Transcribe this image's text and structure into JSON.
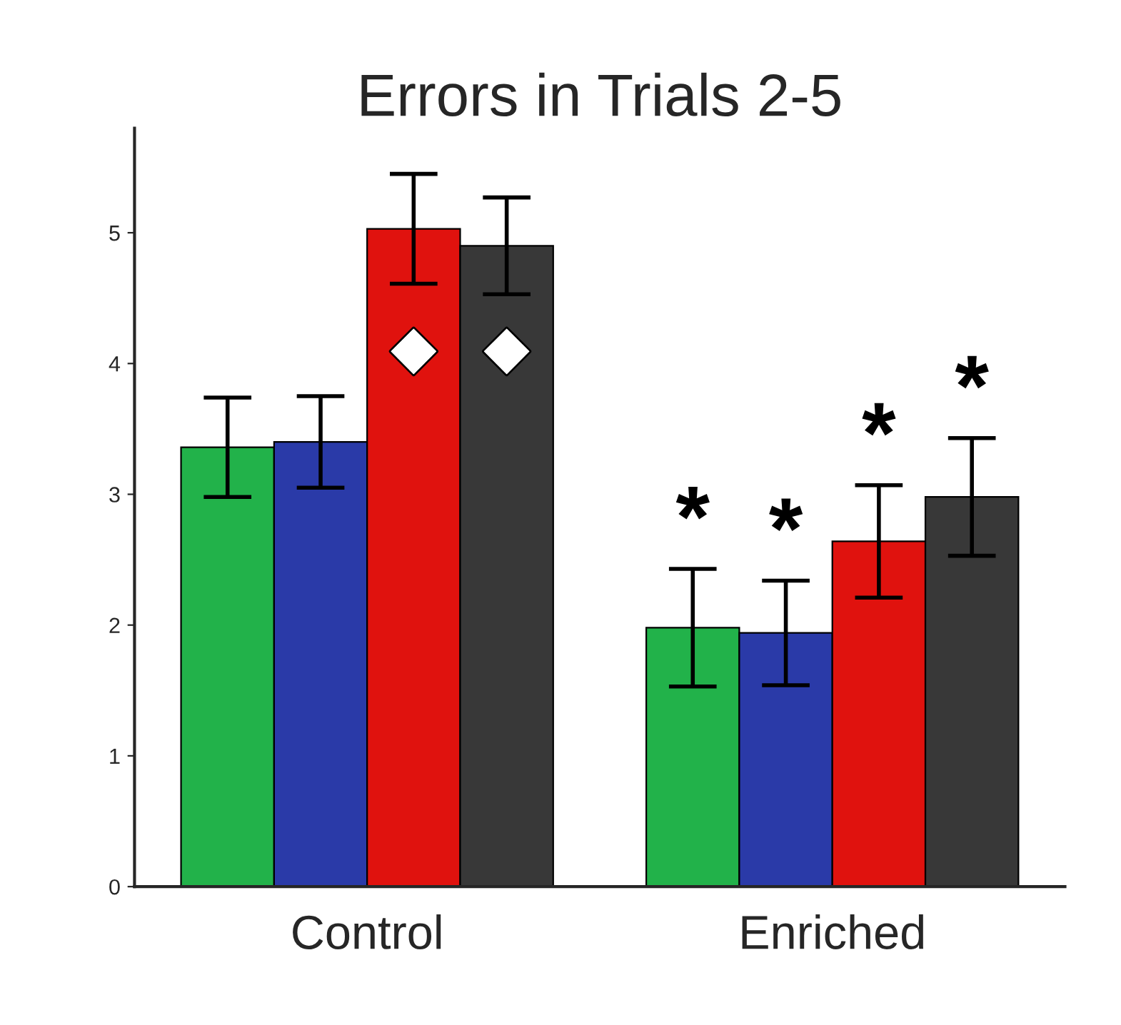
{
  "chart_data": {
    "type": "bar",
    "title": "Errors in Trials 2-5",
    "categories": [
      "Control",
      "Enriched"
    ],
    "series": [
      {
        "color": "#22b24a",
        "values": [
          3.36,
          1.98
        ],
        "errors": [
          0.38,
          0.45
        ]
      },
      {
        "color": "#2a3aa8",
        "values": [
          3.4,
          1.94
        ],
        "errors": [
          0.35,
          0.4
        ]
      },
      {
        "color": "#e0120e",
        "values": [
          5.03,
          2.64
        ],
        "errors": [
          0.42,
          0.43
        ]
      },
      {
        "color": "#383838",
        "values": [
          4.9,
          2.98
        ],
        "errors": [
          0.37,
          0.45
        ]
      }
    ],
    "ylim": [
      0,
      5.8
    ],
    "yticks": [
      0,
      1,
      2,
      3,
      4,
      5
    ],
    "grid": false,
    "legend": false,
    "annotations": [
      {
        "text": "◆",
        "x": "Control",
        "y": 4.1
      },
      {
        "text": "◆",
        "x": "Control",
        "y": 4.1
      },
      "*",
      "*",
      "*",
      "*"
    ]
  }
}
